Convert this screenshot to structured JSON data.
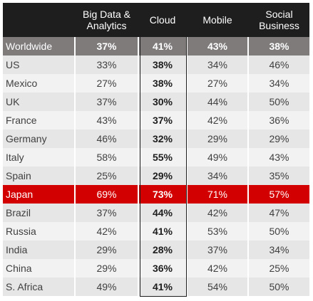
{
  "chart_data": {
    "type": "table",
    "columns": [
      "",
      "Big Data &\nAnalytics",
      "Cloud",
      "Mobile",
      "Social\nBusiness"
    ],
    "rows": [
      {
        "label": "Worldwide",
        "values": [
          "37%",
          "41%",
          "43%",
          "38%"
        ]
      },
      {
        "label": "US",
        "values": [
          "33%",
          "38%",
          "34%",
          "46%"
        ]
      },
      {
        "label": "Mexico",
        "values": [
          "27%",
          "38%",
          "27%",
          "34%"
        ]
      },
      {
        "label": "UK",
        "values": [
          "37%",
          "30%",
          "44%",
          "50%"
        ]
      },
      {
        "label": "France",
        "values": [
          "43%",
          "37%",
          "42%",
          "36%"
        ]
      },
      {
        "label": "Germany",
        "values": [
          "46%",
          "32%",
          "29%",
          "29%"
        ]
      },
      {
        "label": "Italy",
        "values": [
          "58%",
          "55%",
          "49%",
          "43%"
        ]
      },
      {
        "label": "Spain",
        "values": [
          "25%",
          "29%",
          "34%",
          "35%"
        ]
      },
      {
        "label": "Japan",
        "values": [
          "69%",
          "73%",
          "71%",
          "57%"
        ]
      },
      {
        "label": "Brazil",
        "values": [
          "37%",
          "44%",
          "42%",
          "47%"
        ]
      },
      {
        "label": "Russia",
        "values": [
          "42%",
          "41%",
          "53%",
          "50%"
        ]
      },
      {
        "label": "India",
        "values": [
          "29%",
          "28%",
          "37%",
          "34%"
        ]
      },
      {
        "label": "China",
        "values": [
          "29%",
          "36%",
          "42%",
          "25%"
        ]
      },
      {
        "label": "S. Africa",
        "values": [
          "49%",
          "41%",
          "54%",
          "50%"
        ]
      }
    ],
    "highlight_rows": {
      "Worldwide": "#7f7b7b",
      "Japan": "#d20000"
    },
    "highlight_column": "Cloud",
    "header_color": "#1e1e1e",
    "row_colors": [
      "#e6e6e6",
      "#f2f2f2"
    ]
  }
}
